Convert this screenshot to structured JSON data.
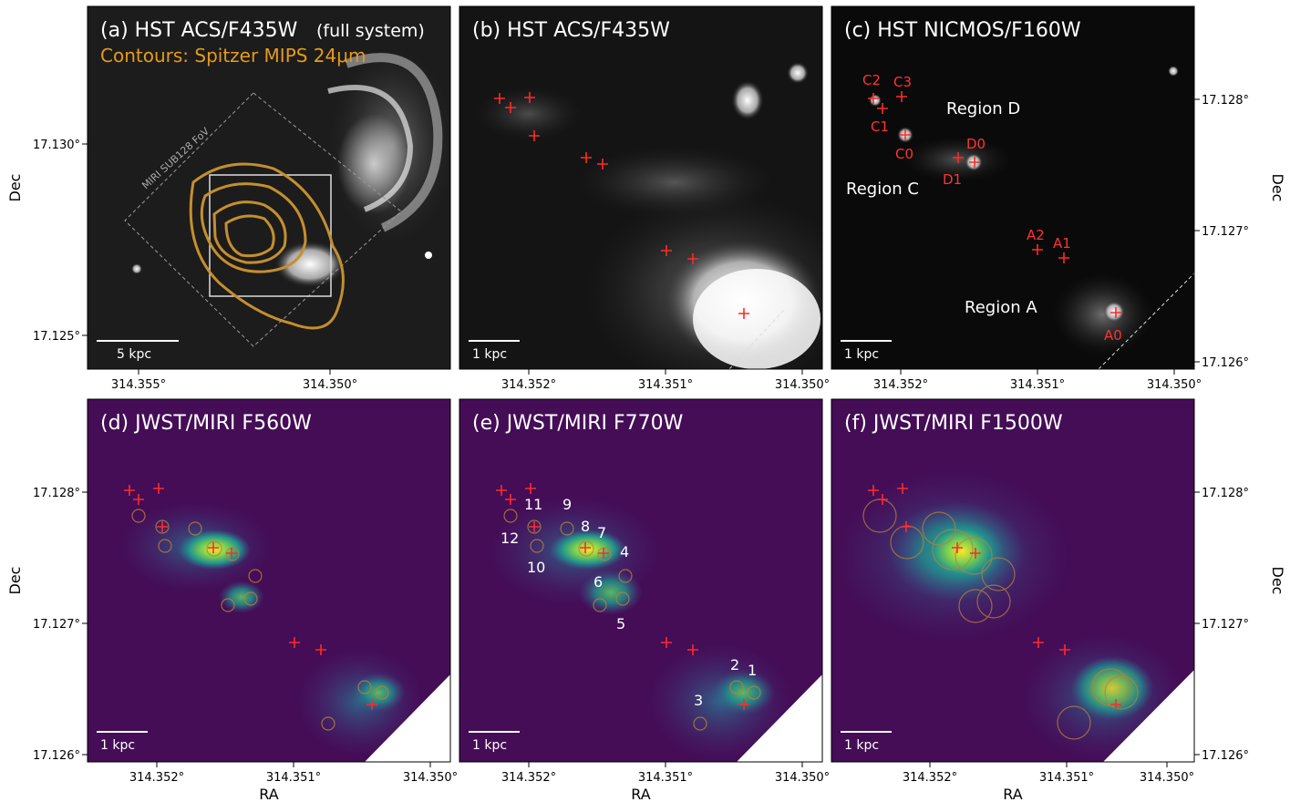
{
  "panels": {
    "a": {
      "title": "(a) HST ACS/F435W",
      "title_suffix": "(full system)",
      "contour_label": "Contours: Spitzer MIPS 24",
      "contour_unit": "μm",
      "fov_label": "MIRI SUB128 FoV",
      "scalebar": "5 kpc"
    },
    "b": {
      "title": "(b) HST ACS/F435W",
      "scalebar": "1 kpc"
    },
    "c": {
      "title": "(c) HST NICMOS/F160W",
      "scalebar": "1 kpc",
      "regions": [
        "Region D",
        "Region C",
        "Region A"
      ],
      "sources": [
        "C2",
        "C3",
        "C1",
        "C0",
        "D0",
        "D1",
        "A2",
        "A1",
        "A0"
      ]
    },
    "d": {
      "title": "(d) JWST/MIRI F560W",
      "scalebar": "1 kpc"
    },
    "e": {
      "title": "(e) JWST/MIRI F770W",
      "scalebar": "1 kpc",
      "apertures": [
        "11",
        "9",
        "12",
        "8",
        "7",
        "4",
        "10",
        "6",
        "5",
        "2",
        "1",
        "3"
      ]
    },
    "f": {
      "title": "(f) JWST/MIRI F1500W",
      "scalebar": "1 kpc"
    }
  },
  "axes": {
    "ra_label": "RA",
    "dec_label": "Dec",
    "top_a_dec_ticks": [
      "17.130°",
      "17.125°"
    ],
    "top_a_ra_ticks": [
      "314.355°",
      "314.350°"
    ],
    "ra_ticks": [
      "314.352°",
      "314.351°",
      "314.350°"
    ],
    "dec_ticks": [
      "17.128°",
      "17.127°",
      "17.126°"
    ]
  },
  "colors": {
    "contour": "#c48f2f",
    "marker": "#ff2a2a",
    "miri_bg": "#440d56",
    "label_orange": "#e69a1b"
  }
}
